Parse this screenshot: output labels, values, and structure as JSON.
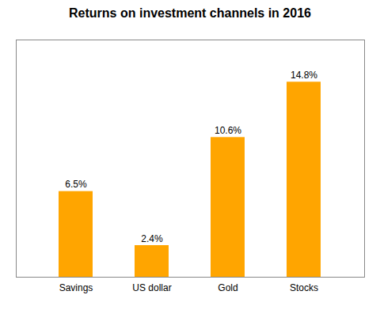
{
  "chart_data": {
    "type": "bar",
    "title": "Returns on investment channels in 2016",
    "categories": [
      "Savings",
      "US dollar",
      "Gold",
      "Stocks"
    ],
    "values": [
      6.5,
      2.4,
      10.6,
      14.8
    ],
    "value_labels": [
      "6.5%",
      "2.4%",
      "10.6%",
      "14.8%"
    ],
    "color": "#FFA500",
    "ylim": [
      0,
      18
    ],
    "data_labels": true,
    "tick_labels": "x"
  }
}
